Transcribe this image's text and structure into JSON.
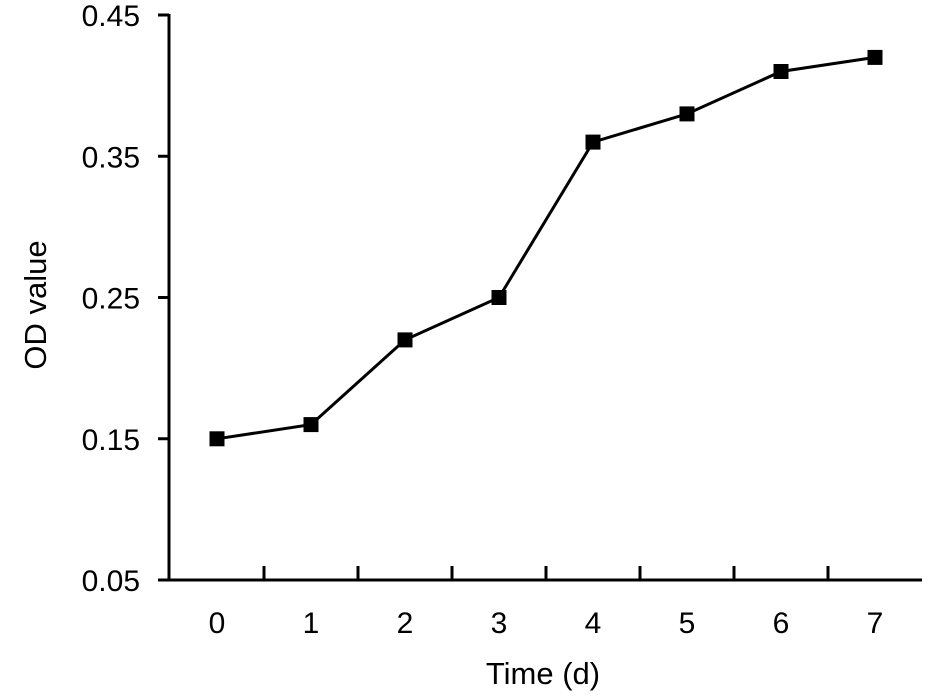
{
  "chart_data": {
    "type": "line",
    "title": "",
    "xlabel": "Time (d)",
    "ylabel": "OD value",
    "x": [
      0,
      1,
      2,
      3,
      4,
      5,
      6,
      7
    ],
    "x_tick_labels": [
      "0",
      "1",
      "2",
      "3",
      "4",
      "5",
      "6",
      "7"
    ],
    "y_tick_labels": [
      "0.05",
      "0.15",
      "0.25",
      "0.35",
      "0.45"
    ],
    "y_ticks": [
      0.05,
      0.15,
      0.25,
      0.35,
      0.45
    ],
    "ylim": [
      0.05,
      0.45
    ],
    "xlim": [
      -0.5,
      7.5
    ],
    "grid": false,
    "legend": "none",
    "series": [
      {
        "values": [
          0.15,
          0.16,
          0.22,
          0.25,
          0.36,
          0.38,
          0.41,
          0.42
        ],
        "marker": "square",
        "color": "#000000"
      }
    ]
  }
}
